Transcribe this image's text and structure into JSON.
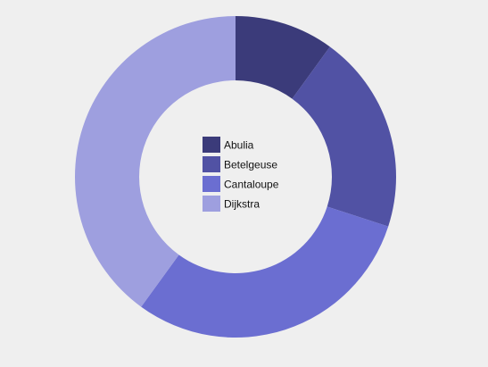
{
  "chart_data": {
    "type": "pie",
    "variant": "donut",
    "categories": [
      "Abulia",
      "Betelgeuse",
      "Cantaloupe",
      "Dijkstra"
    ],
    "values": [
      10,
      20,
      30,
      40
    ],
    "colors": [
      "#3b3b7a",
      "#5152a4",
      "#6b6ed1",
      "#9e9fdf"
    ],
    "legend": {
      "position": "center"
    }
  }
}
